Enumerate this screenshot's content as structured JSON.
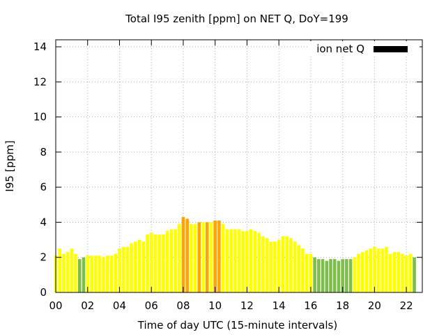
{
  "chart_data": {
    "type": "bar",
    "title": "Total I95 zenith [ppm] on NET Q, DoY=199",
    "xlabel": "Time of day UTC (15-minute intervals)",
    "ylabel": "I95 [ppm]",
    "xlim": [
      0,
      23
    ],
    "ylim": [
      0,
      14.4
    ],
    "xticks": [
      "00",
      "02",
      "04",
      "06",
      "08",
      "10",
      "12",
      "14",
      "16",
      "18",
      "20",
      "22"
    ],
    "yticks": [
      "0",
      "2",
      "4",
      "6",
      "8",
      "10",
      "12",
      "14"
    ],
    "grid": true,
    "legend": {
      "label": "ion net Q",
      "color": "#000000",
      "placement": "top-right"
    },
    "colors": {
      "low": "#7dbd4a",
      "medium": "#ffff00",
      "high": "#ffa500"
    },
    "bar_interval_hours": 0.25,
    "values": [
      2.1,
      2.5,
      2.2,
      2.3,
      2.5,
      2.2,
      1.9,
      2.0,
      2.1,
      2.1,
      2.1,
      2.1,
      2.0,
      2.1,
      2.1,
      2.2,
      2.5,
      2.6,
      2.6,
      2.8,
      2.9,
      3.0,
      2.9,
      3.3,
      3.4,
      3.3,
      3.3,
      3.3,
      3.5,
      3.6,
      3.6,
      3.9,
      4.3,
      4.2,
      3.9,
      3.9,
      4.0,
      4.0,
      4.0,
      4.0,
      4.1,
      4.1,
      3.9,
      3.6,
      3.6,
      3.6,
      3.6,
      3.5,
      3.5,
      3.6,
      3.5,
      3.4,
      3.2,
      3.1,
      2.9,
      2.9,
      3.0,
      3.2,
      3.2,
      3.1,
      2.9,
      2.7,
      2.5,
      2.2,
      2.2,
      2.0,
      1.9,
      1.9,
      1.8,
      1.9,
      1.9,
      1.8,
      1.9,
      1.9,
      1.9,
      2.0,
      2.2,
      2.3,
      2.4,
      2.5,
      2.6,
      2.5,
      2.5,
      2.6,
      2.2,
      2.3,
      2.3,
      2.2,
      2.1,
      2.2,
      2.0
    ],
    "categories": [
      "yellow",
      "yellow",
      "yellow",
      "yellow",
      "yellow",
      "yellow",
      "green",
      "green",
      "yellow",
      "yellow",
      "yellow",
      "yellow",
      "yellow",
      "yellow",
      "yellow",
      "yellow",
      "yellow",
      "yellow",
      "yellow",
      "yellow",
      "yellow",
      "yellow",
      "yellow",
      "yellow",
      "yellow",
      "yellow",
      "yellow",
      "yellow",
      "yellow",
      "yellow",
      "yellow",
      "yellow",
      "orange",
      "orange",
      "yellow",
      "yellow",
      "orange",
      "yellow",
      "orange",
      "yellow",
      "orange",
      "orange",
      "yellow",
      "yellow",
      "yellow",
      "yellow",
      "yellow",
      "yellow",
      "yellow",
      "yellow",
      "yellow",
      "yellow",
      "yellow",
      "yellow",
      "yellow",
      "yellow",
      "yellow",
      "yellow",
      "yellow",
      "yellow",
      "yellow",
      "yellow",
      "yellow",
      "yellow",
      "yellow",
      "green",
      "green",
      "green",
      "green",
      "green",
      "green",
      "green",
      "green",
      "green",
      "green",
      "yellow",
      "yellow",
      "yellow",
      "yellow",
      "yellow",
      "yellow",
      "yellow",
      "yellow",
      "yellow",
      "yellow",
      "yellow",
      "yellow",
      "yellow",
      "yellow",
      "yellow",
      "green"
    ]
  }
}
